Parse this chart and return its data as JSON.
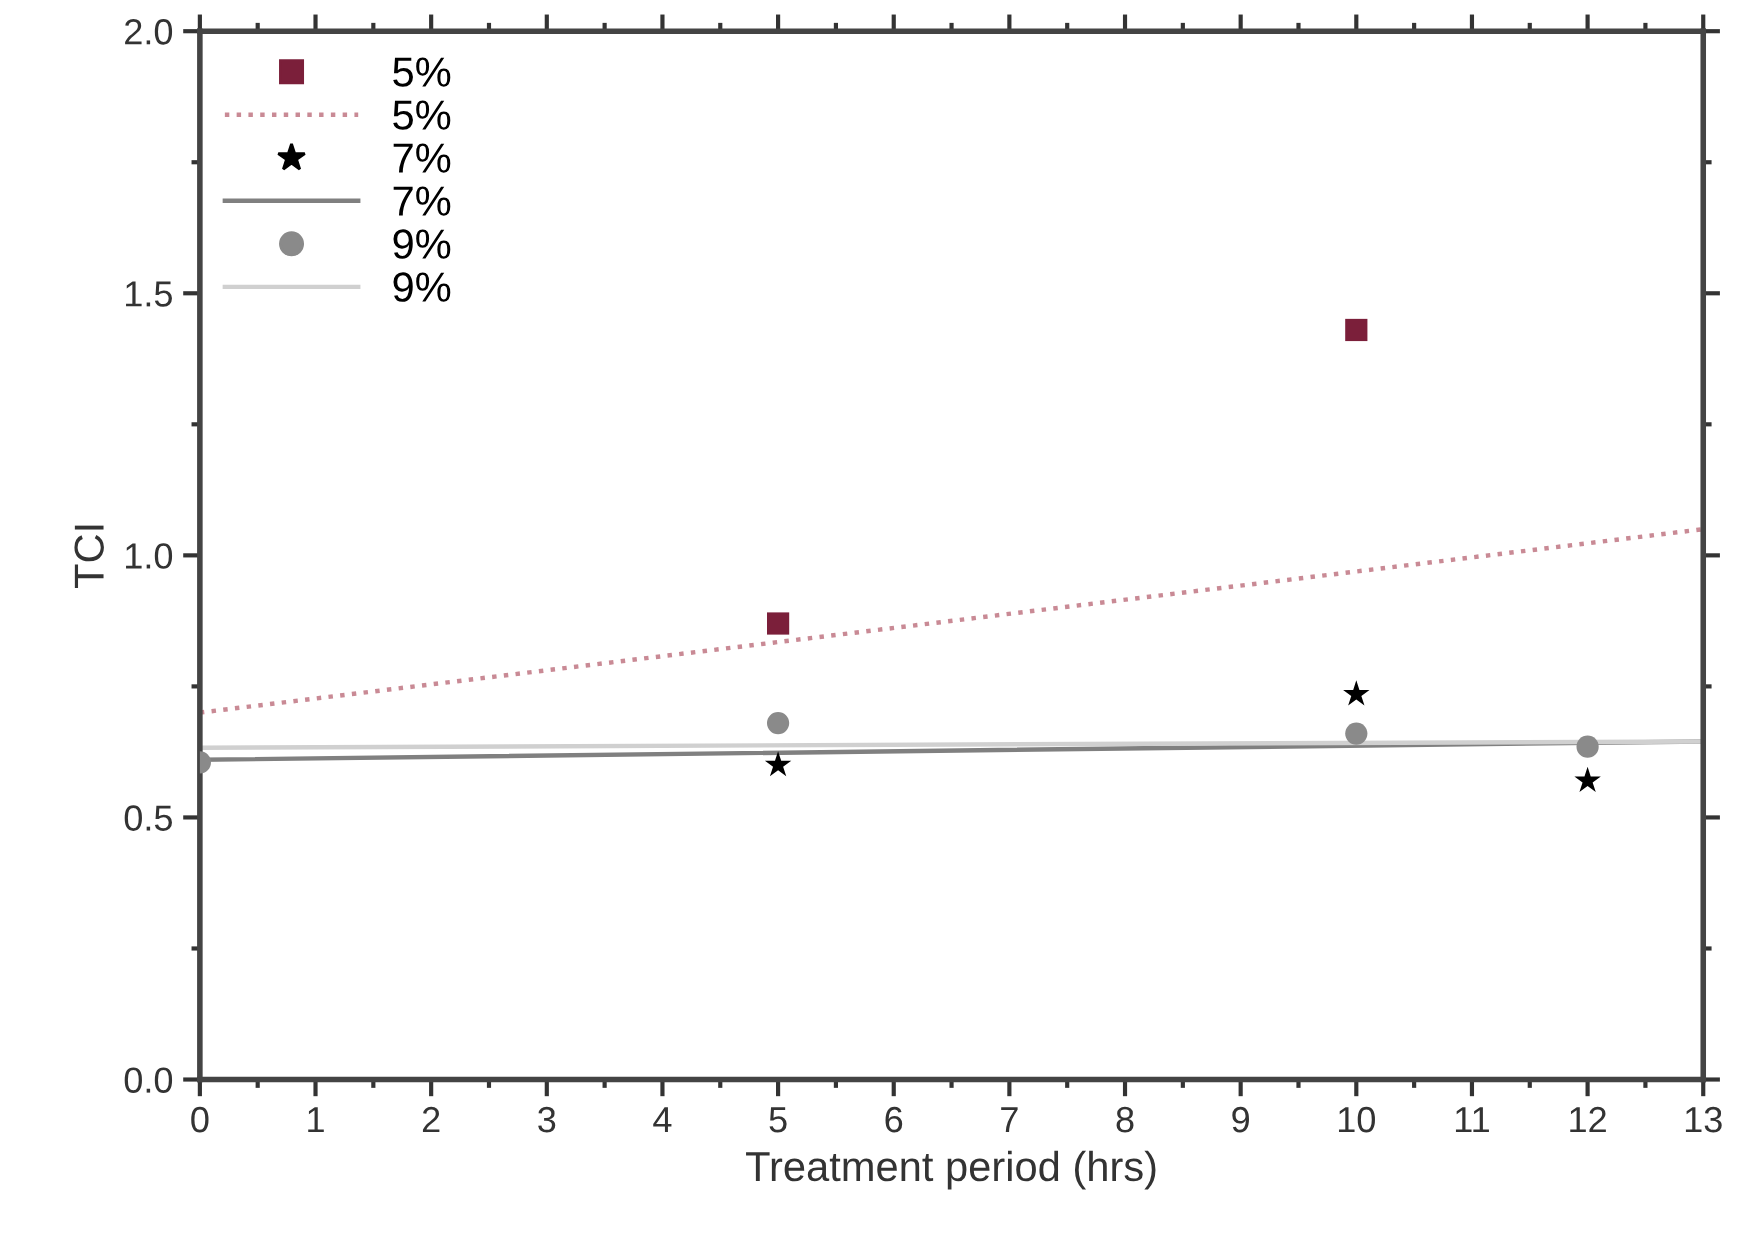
{
  "chart_data": {
    "type": "scatter",
    "xlabel": "Treatment period (hrs)",
    "ylabel": "TCI",
    "xlim": [
      0,
      13
    ],
    "ylim": [
      0,
      2.0
    ],
    "xticks": [
      0,
      1,
      2,
      3,
      4,
      5,
      6,
      7,
      8,
      9,
      10,
      11,
      12,
      13
    ],
    "yticks": [
      {
        "value": 0,
        "label": "0.0"
      },
      0.5,
      {
        "value": 1,
        "label": "1.0"
      },
      1.5,
      {
        "value": 2,
        "label": "2.0"
      }
    ],
    "grid": false,
    "legend": "top left",
    "series": [
      {
        "name": "5%",
        "marker": "square",
        "color": "#7b1f3a",
        "x": [
          5,
          10
        ],
        "values": [
          0.87,
          1.43
        ]
      },
      {
        "name": "5%",
        "type": "line",
        "marker": "none",
        "line_style": "dotted",
        "color": "#c98a95",
        "x": [
          0,
          13
        ],
        "values": [
          0.7,
          1.05
        ]
      },
      {
        "name": "7%",
        "marker": "star",
        "color": "#000000",
        "x": [
          5,
          10,
          12
        ],
        "values": [
          0.6,
          0.735,
          0.57
        ]
      },
      {
        "name": "7%",
        "type": "line",
        "marker": "none",
        "line_style": "solid",
        "color": "#808080",
        "x": [
          0,
          13
        ],
        "values": [
          0.61,
          0.645
        ]
      },
      {
        "name": "9%",
        "marker": "circle",
        "color": "#8a8a8a",
        "x": [
          0,
          5,
          10,
          12
        ],
        "values": [
          0.605,
          0.68,
          0.66,
          0.635
        ]
      },
      {
        "name": "9%",
        "type": "line",
        "marker": "none",
        "line_style": "solid",
        "color": "#d0d0d0",
        "x": [
          0,
          13
        ],
        "values": [
          0.633,
          0.645
        ]
      }
    ]
  }
}
